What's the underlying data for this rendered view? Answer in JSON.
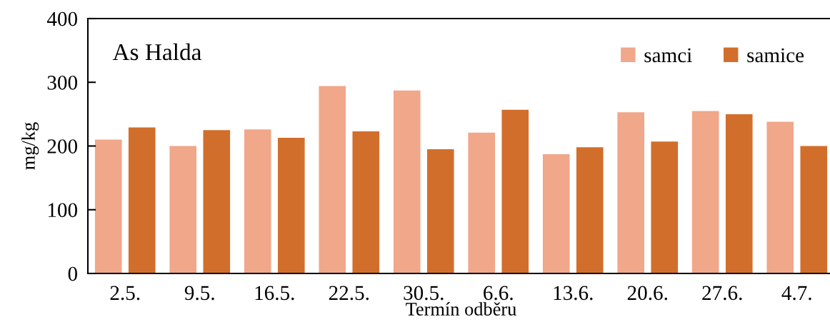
{
  "chart_data": {
    "type": "bar",
    "title": "As Halda",
    "xlabel": "Termín odběru",
    "ylabel": "mg/kg",
    "categories": [
      "2.5.",
      "9.5.",
      "16.5.",
      "22.5.",
      "30.5.",
      "6.6.",
      "13.6.",
      "20.6.",
      "27.6.",
      "4.7."
    ],
    "series": [
      {
        "name": "samci",
        "color": "#f0a78a",
        "values": [
          210,
          200,
          226,
          294,
          287,
          221,
          187,
          253,
          255,
          238
        ]
      },
      {
        "name": "samice",
        "color": "#d26e2b",
        "values": [
          229,
          225,
          213,
          223,
          195,
          257,
          198,
          207,
          250,
          200
        ]
      }
    ],
    "ylim": [
      0,
      400
    ],
    "yticks": [
      0,
      100,
      200,
      300,
      400
    ],
    "grid": false,
    "legend": "top right"
  }
}
